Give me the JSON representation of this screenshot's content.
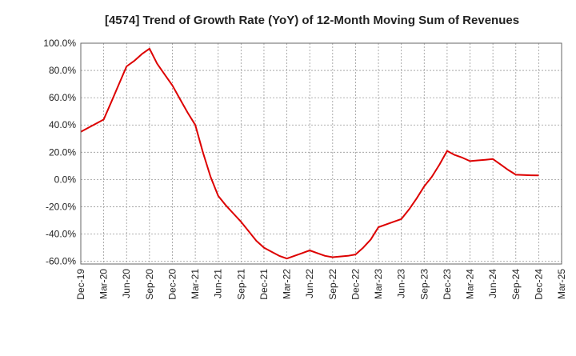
{
  "chart_data": {
    "type": "line",
    "title": "[4574]  Trend of Growth Rate (YoY) of 12-Month Moving Sum of Revenues",
    "xlabel": "",
    "ylabel": "",
    "y_ticks": [
      100,
      80,
      60,
      40,
      20,
      0,
      -20,
      -40,
      -60
    ],
    "y_tick_labels": [
      "100.0%",
      "80.0%",
      "60.0%",
      "40.0%",
      "20.0%",
      "0.0%",
      "-20.0%",
      "-40.0%",
      "-60.0%"
    ],
    "ylim": [
      -62,
      100
    ],
    "x_tick_labels": [
      "Dec-19",
      "Mar-20",
      "Jun-20",
      "Sep-20",
      "Dec-20",
      "Mar-21",
      "Jun-21",
      "Sep-21",
      "Dec-21",
      "Mar-22",
      "Jun-22",
      "Sep-22",
      "Dec-22",
      "Mar-23",
      "Jun-23",
      "Sep-23",
      "Dec-23",
      "Mar-24",
      "Jun-24",
      "Sep-24",
      "Dec-24",
      "Mar-25"
    ],
    "x_range": [
      "Dec-19",
      "Mar-25"
    ],
    "grid": true,
    "legend": "none",
    "series": [
      {
        "color": "#dd0000",
        "x": [
          "Dec-19",
          "Jan-20",
          "Feb-20",
          "Mar-20",
          "Apr-20",
          "May-20",
          "Jun-20",
          "Jul-20",
          "Aug-20",
          "Sep-20",
          "Oct-20",
          "Nov-20",
          "Dec-20",
          "Jan-21",
          "Feb-21",
          "Mar-21",
          "Apr-21",
          "May-21",
          "Jun-21",
          "Jul-21",
          "Aug-21",
          "Sep-21",
          "Oct-21",
          "Nov-21",
          "Dec-21",
          "Jan-22",
          "Feb-22",
          "Mar-22",
          "Apr-22",
          "May-22",
          "Jun-22",
          "Jul-22",
          "Aug-22",
          "Sep-22",
          "Oct-22",
          "Nov-22",
          "Dec-22",
          "Jan-23",
          "Feb-23",
          "Mar-23",
          "Apr-23",
          "May-23",
          "Jun-23",
          "Jul-23",
          "Aug-23",
          "Sep-23",
          "Oct-23",
          "Nov-23",
          "Dec-23",
          "Jan-24",
          "Feb-24",
          "Mar-24",
          "Apr-24",
          "May-24",
          "Jun-24",
          "Jul-24",
          "Aug-24",
          "Sep-24",
          "Oct-24",
          "Nov-24",
          "Dec-24"
        ],
        "values": [
          35,
          38,
          41,
          44,
          57,
          70,
          83,
          87,
          92,
          96,
          85,
          77,
          69,
          59,
          49,
          40,
          20,
          2,
          -12,
          -19,
          -25,
          -31,
          -38,
          -45,
          -50,
          -53,
          -56,
          -58,
          -56,
          -54,
          -52,
          -54,
          -56,
          -57,
          -56.5,
          -56,
          -55,
          -50,
          -44,
          -35,
          -33,
          -31,
          -29,
          -22,
          -14,
          -5,
          2,
          11,
          21,
          18,
          16,
          13.5,
          14,
          14.5,
          15,
          11,
          7,
          3.5,
          3.3,
          3.1,
          3
        ]
      }
    ]
  }
}
